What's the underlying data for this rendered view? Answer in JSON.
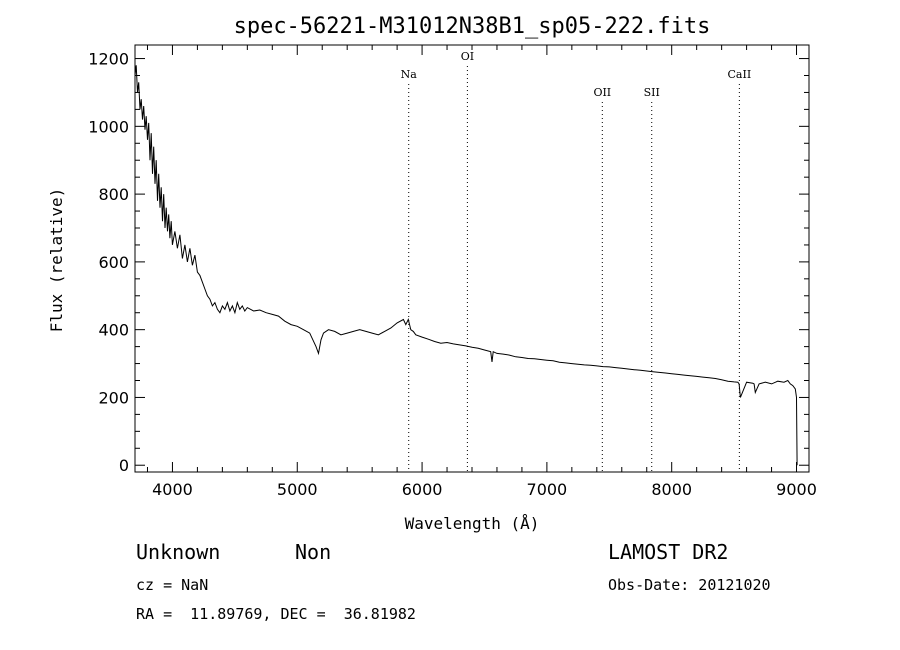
{
  "chart_data": {
    "type": "line",
    "title": "spec-56221-M31012N38B1_sp05-222.fits",
    "xlabel": "Wavelength (Å)",
    "ylabel": "Flux (relative)",
    "xlim": [
      3700,
      9100
    ],
    "ylim": [
      -20,
      1240
    ],
    "xticks": [
      4000,
      5000,
      6000,
      7000,
      8000,
      9000
    ],
    "yticks": [
      0,
      200,
      400,
      600,
      800,
      1000,
      1200
    ],
    "grid": false,
    "series": [
      {
        "x": [
          3700,
          3710,
          3720,
          3730,
          3740,
          3750,
          3760,
          3770,
          3780,
          3790,
          3800,
          3810,
          3820,
          3830,
          3840,
          3850,
          3860,
          3870,
          3880,
          3890,
          3900,
          3910,
          3920,
          3930,
          3940,
          3950,
          3960,
          3970,
          3980,
          3990,
          4000,
          4020,
          4040,
          4060,
          4080,
          4100,
          4120,
          4140,
          4160,
          4180,
          4200,
          4220,
          4240,
          4260,
          4280,
          4300,
          4320,
          4340,
          4360,
          4380,
          4400,
          4420,
          4440,
          4460,
          4480,
          4500,
          4520,
          4540,
          4560,
          4580,
          4600,
          4650,
          4700,
          4750,
          4800,
          4850,
          4900,
          4950,
          5000,
          5050,
          5100,
          5150,
          5170,
          5190,
          5210,
          5250,
          5300,
          5350,
          5400,
          5450,
          5500,
          5550,
          5600,
          5650,
          5700,
          5750,
          5800,
          5850,
          5870,
          5890,
          5910,
          5930,
          5950,
          6000,
          6050,
          6100,
          6150,
          6200,
          6250,
          6300,
          6350,
          6400,
          6450,
          6500,
          6550,
          6560,
          6570,
          6600,
          6650,
          6700,
          6750,
          6800,
          6850,
          6900,
          6950,
          7000,
          7050,
          7100,
          7150,
          7200,
          7250,
          7300,
          7350,
          7400,
          7450,
          7500,
          7550,
          7600,
          7650,
          7700,
          7750,
          7800,
          7850,
          7900,
          7950,
          8000,
          8050,
          8100,
          8150,
          8200,
          8250,
          8300,
          8350,
          8400,
          8450,
          8500,
          8530,
          8540,
          8550,
          8600,
          8650,
          8660,
          8670,
          8700,
          8750,
          8800,
          8850,
          8900,
          8930,
          8950,
          8970,
          8990,
          9000,
          9005
        ],
        "y": [
          1150,
          1180,
          1100,
          1130,
          1050,
          1080,
          1020,
          1060,
          990,
          1030,
          960,
          1010,
          900,
          980,
          860,
          940,
          830,
          900,
          780,
          860,
          760,
          820,
          720,
          800,
          700,
          760,
          690,
          740,
          670,
          720,
          650,
          690,
          640,
          680,
          610,
          650,
          600,
          640,
          590,
          620,
          570,
          560,
          540,
          520,
          500,
          490,
          470,
          480,
          460,
          450,
          470,
          460,
          480,
          455,
          470,
          450,
          480,
          460,
          470,
          455,
          465,
          455,
          458,
          450,
          445,
          440,
          425,
          415,
          410,
          400,
          390,
          350,
          330,
          370,
          390,
          400,
          395,
          385,
          390,
          395,
          400,
          395,
          390,
          385,
          395,
          405,
          420,
          430,
          415,
          430,
          400,
          395,
          385,
          378,
          372,
          365,
          360,
          362,
          358,
          355,
          352,
          348,
          345,
          340,
          335,
          305,
          335,
          330,
          328,
          325,
          320,
          318,
          315,
          314,
          312,
          310,
          308,
          304,
          302,
          300,
          298,
          296,
          295,
          293,
          291,
          290,
          288,
          286,
          284,
          282,
          280,
          278,
          276,
          274,
          272,
          270,
          268,
          266,
          264,
          262,
          260,
          258,
          256,
          252,
          248,
          246,
          245,
          240,
          200,
          245,
          242,
          240,
          215,
          240,
          245,
          240,
          248,
          245,
          250,
          240,
          235,
          225,
          200,
          0
        ]
      }
    ],
    "lines": [
      {
        "label": "Na",
        "x": 5893
      },
      {
        "label": "OI",
        "x": 6363
      },
      {
        "label": "OII",
        "x": 7444
      },
      {
        "label": "SII",
        "x": 7840
      },
      {
        "label": "CaII",
        "x": 8542
      }
    ]
  },
  "info": {
    "class": "Unknown",
    "subclass": "Non",
    "survey": "LAMOST DR2",
    "cz": "cz = NaN",
    "obs_date": "Obs-Date: 20121020",
    "coords": "RA =  11.89769, DEC =  36.81982"
  }
}
